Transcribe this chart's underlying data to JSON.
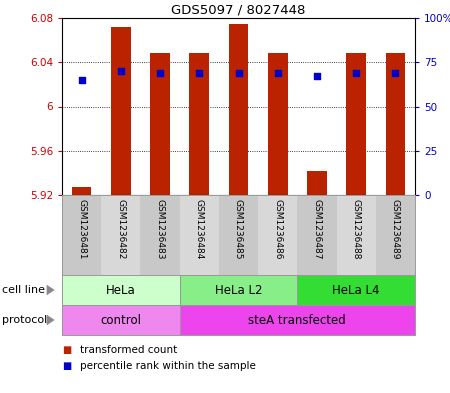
{
  "title": "GDS5097 / 8027448",
  "samples": [
    "GSM1236481",
    "GSM1236482",
    "GSM1236483",
    "GSM1236484",
    "GSM1236485",
    "GSM1236486",
    "GSM1236487",
    "GSM1236488",
    "GSM1236489"
  ],
  "bar_values": [
    5.927,
    6.072,
    6.048,
    6.048,
    6.075,
    6.048,
    5.942,
    6.048,
    6.048
  ],
  "bar_bottom": 5.92,
  "percentile_values": [
    65,
    70,
    69,
    69,
    69,
    69,
    67,
    69,
    69
  ],
  "ylim_left": [
    5.92,
    6.08
  ],
  "ylim_right": [
    0,
    100
  ],
  "yticks_left": [
    5.92,
    5.96,
    6.0,
    6.04,
    6.08
  ],
  "ytick_labels_left": [
    "5.92",
    "5.96",
    "6",
    "6.04",
    "6.08"
  ],
  "yticks_right": [
    0,
    25,
    50,
    75,
    100
  ],
  "ytick_labels_right": [
    "0",
    "25",
    "50",
    "75",
    "100%"
  ],
  "bar_color": "#BB2200",
  "percentile_color": "#0000CC",
  "cell_line_groups": [
    {
      "label": "HeLa",
      "start": 0,
      "end": 3,
      "color": "#CCFFCC"
    },
    {
      "label": "HeLa L2",
      "start": 3,
      "end": 6,
      "color": "#88EE88"
    },
    {
      "label": "HeLa L4",
      "start": 6,
      "end": 9,
      "color": "#33DD33"
    }
  ],
  "protocol_groups": [
    {
      "label": "control",
      "start": 0,
      "end": 3,
      "color": "#EE88EE"
    },
    {
      "label": "steA transfected",
      "start": 3,
      "end": 9,
      "color": "#EE44EE"
    }
  ],
  "cell_line_label": "cell line",
  "protocol_label": "protocol",
  "legend_bar_label": "transformed count",
  "legend_pct_label": "percentile rank within the sample",
  "xlabels_bg": "#CCCCCC",
  "plot_bg_color": "#FFFFFF",
  "arrow_color": "#888888",
  "bar_width": 0.5
}
